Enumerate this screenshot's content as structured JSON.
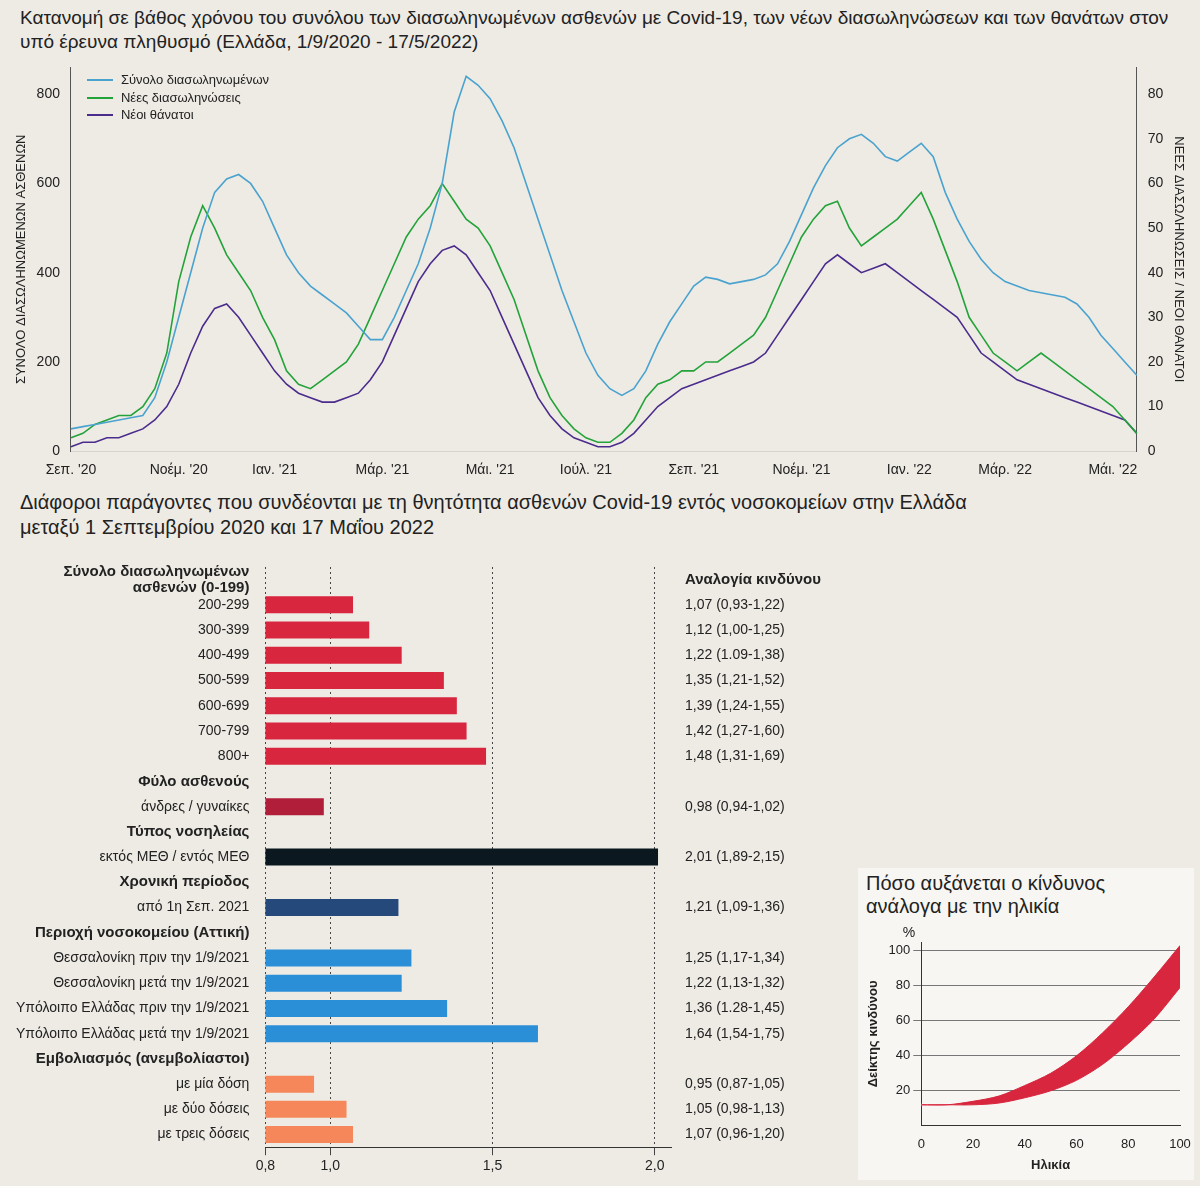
{
  "chart_data": [
    {
      "type": "line",
      "title": "Κατανομή σε βάθος χρόνου του συνόλου των διασωληνωμένων ασθενών με Covid-19, των νέων διασωληνώσεων και των θανάτων στον υπό έρευνα πληθυσμό (Ελλάδα, 1/9/2020 - 17/5/2022)",
      "ylabel": "ΣΥΝΟΛΟ ΔΙΑΣΩΛΗΝΩΜΕΝΩΝ ΑΣΘΕΝΩΝ",
      "y2label": "ΝΕΕΣ ΔΙΑΣΩΛΗΝΩΣΕΙΣ / ΝΕΟΙ ΘΑΝΑΤΟΙ",
      "categories": [
        "Σεπ. '20",
        null,
        null,
        null,
        null,
        null,
        null,
        null,
        null,
        "Νοέμ. '20",
        null,
        null,
        null,
        null,
        null,
        null,
        null,
        "Ιαν. '21",
        null,
        null,
        null,
        null,
        null,
        null,
        null,
        null,
        "Μάρ. '21",
        null,
        null,
        null,
        null,
        null,
        null,
        null,
        null,
        "Μάι. '21",
        null,
        null,
        null,
        null,
        null,
        null,
        null,
        "Ιούλ. '21",
        null,
        null,
        null,
        null,
        null,
        null,
        null,
        null,
        "Σεπ. '21",
        null,
        null,
        null,
        null,
        null,
        null,
        null,
        null,
        "Νοέμ. '21",
        null,
        null,
        null,
        null,
        null,
        null,
        null,
        null,
        "Ιαν. '22",
        null,
        null,
        null,
        null,
        null,
        null,
        null,
        "Μάρ. '22",
        null,
        null,
        null,
        null,
        null,
        null,
        null,
        null,
        "Μάι. '22",
        null,
        null
      ],
      "series": [
        {
          "name": "Σύνολο διασωληνωμένων",
          "color": "#4aa3cf",
          "axis": "y",
          "values": [
            50,
            55,
            60,
            65,
            70,
            75,
            80,
            120,
            200,
            300,
            400,
            500,
            580,
            610,
            620,
            600,
            560,
            500,
            440,
            400,
            370,
            350,
            330,
            310,
            280,
            250,
            250,
            300,
            360,
            420,
            500,
            600,
            760,
            840,
            820,
            790,
            740,
            680,
            600,
            520,
            440,
            360,
            290,
            220,
            170,
            140,
            125,
            140,
            180,
            240,
            290,
            330,
            370,
            390,
            385,
            375,
            380,
            385,
            395,
            420,
            470,
            530,
            590,
            640,
            680,
            700,
            710,
            690,
            660,
            650,
            670,
            690,
            660,
            580,
            520,
            470,
            430,
            400,
            380,
            370,
            360,
            355,
            350,
            345,
            330,
            300,
            260,
            230,
            200,
            170
          ]
        },
        {
          "name": "Νέες διασωληνώσεις",
          "color": "#23a33a",
          "axis": "y2",
          "values": [
            3,
            4,
            6,
            7,
            8,
            8,
            10,
            14,
            22,
            38,
            48,
            55,
            50,
            44,
            40,
            36,
            30,
            25,
            18,
            15,
            14,
            16,
            18,
            20,
            24,
            30,
            36,
            42,
            48,
            52,
            55,
            60,
            56,
            52,
            50,
            46,
            40,
            34,
            26,
            18,
            12,
            8,
            5,
            3,
            2,
            2,
            4,
            7,
            12,
            15,
            16,
            18,
            18,
            20,
            20,
            22,
            24,
            26,
            30,
            36,
            42,
            48,
            52,
            55,
            56,
            50,
            46,
            48,
            50,
            52,
            55,
            58,
            52,
            45,
            38,
            30,
            26,
            22,
            20,
            18,
            20,
            22,
            20,
            18,
            16,
            14,
            12,
            10,
            7,
            4
          ]
        },
        {
          "name": "Νέοι θάνατοι",
          "color": "#4b2c8c",
          "axis": "y2",
          "values": [
            1,
            2,
            2,
            3,
            3,
            4,
            5,
            7,
            10,
            15,
            22,
            28,
            32,
            33,
            30,
            26,
            22,
            18,
            15,
            13,
            12,
            11,
            11,
            12,
            13,
            16,
            20,
            26,
            32,
            38,
            42,
            45,
            46,
            44,
            40,
            36,
            30,
            24,
            18,
            12,
            8,
            5,
            3,
            2,
            1,
            1,
            2,
            4,
            7,
            10,
            12,
            14,
            15,
            16,
            17,
            18,
            19,
            20,
            22,
            26,
            30,
            34,
            38,
            42,
            44,
            42,
            40,
            41,
            42,
            40,
            38,
            36,
            34,
            32,
            30,
            26,
            22,
            20,
            18,
            16,
            15,
            14,
            13,
            12,
            11,
            10,
            9,
            8,
            7,
            4
          ]
        }
      ],
      "ylim": [
        0,
        860
      ],
      "yticks": [
        0,
        200,
        400,
        600,
        800
      ],
      "y2lim": [
        0,
        86
      ],
      "y2ticks": [
        0,
        10,
        20,
        30,
        40,
        50,
        60,
        70,
        80
      ],
      "grid": false,
      "legend": "upper left"
    },
    {
      "type": "bar",
      "orientation": "horizontal",
      "title": "Διάφοροι παράγοντες που συνδέονται με τη θνητότητα ασθενών Covid-19 εντός νοσοκομείων στην Ελλάδα μεταξύ 1 Σεπτεμβρίου 2020 και 17 Μαΐου 2022",
      "annotations": [
        {
          "text": "Αναλογία κινδύνου"
        }
      ],
      "groups": [
        {
          "name": "Σύνολο διασωληνωμένων ασθενών (0-199)",
          "color": "#d9263f",
          "categories": [
            "200-299",
            "300-399",
            "400-499",
            "500-599",
            "600-699",
            "700-799",
            "800+"
          ],
          "values": [
            1.07,
            1.12,
            1.22,
            1.35,
            1.39,
            1.42,
            1.48
          ],
          "value_labels": [
            "1,07 (0,93-1,22)",
            "1,12 (1,00-1,25)",
            "1,22 (1.09-1,38)",
            "1,35 (1,21-1,52)",
            "1,39 (1,24-1,55)",
            "1,42 (1,27-1,60)",
            "1,48 (1,31-1,69)"
          ]
        },
        {
          "name": "Φύλο ασθενούς",
          "color": "#b01e3a",
          "categories": [
            "άνδρες / γυναίκες"
          ],
          "values": [
            0.98
          ],
          "value_labels": [
            "0,98 (0,94-1,02)"
          ]
        },
        {
          "name": "Τύπος νοσηλείας",
          "color": "#0b1820",
          "categories": [
            "εκτός ΜΕΘ / εντός ΜΕΘ"
          ],
          "values": [
            2.01
          ],
          "value_labels": [
            "2,01 (1,89-2,15)"
          ]
        },
        {
          "name": "Χρονική περίοδος",
          "color": "#25497a",
          "categories": [
            "από 1η Σεπ. 2021"
          ],
          "values": [
            1.21
          ],
          "value_labels": [
            "1,21 (1,09-1,36)"
          ]
        },
        {
          "name": "Περιοχή νοσοκομείου (Αττική)",
          "color": "#2b8fd8",
          "categories": [
            "Θεσσαλονίκη πριν την 1/9/2021",
            "Θεσσαλονίκη μετά την 1/9/2021",
            "Υπόλοιπο Ελλάδας πριν την 1/9/2021",
            "Υπόλοιπο Ελλάδας μετά την 1/9/2021"
          ],
          "values": [
            1.25,
            1.22,
            1.36,
            1.64
          ],
          "value_labels": [
            "1,25 (1,17-1,34)",
            "1,22 (1,13-1,32)",
            "1,36 (1.28-1,45)",
            "1,64 (1,54-1,75)"
          ]
        },
        {
          "name": "Εμβολιασμός (ανεμβολίαστοι)",
          "color": "#f5875a",
          "categories": [
            "με μία δόση",
            "με δύο δόσεις",
            "με τρεις δόσεις"
          ],
          "values": [
            0.95,
            1.05,
            1.07
          ],
          "value_labels": [
            "0,95 (0,87-1,05)",
            "1,05 (0,98-1,13)",
            "1,07 (0,96-1,20)"
          ]
        }
      ],
      "xlim": [
        0.8,
        2.05
      ],
      "xticks": [
        {
          "value": 0.8,
          "label": "0,8"
        },
        {
          "value": 1,
          "label": "1,0"
        },
        {
          "value": 1.5,
          "label": "1,5"
        },
        {
          "value": 2,
          "label": "2,0"
        }
      ],
      "grid": true,
      "data_labels": true
    },
    {
      "type": "line",
      "title": "Πόσο αυξάνεται ο κίνδυνος ανάλογα με την ηλικία",
      "xlabel": "Ηλικία",
      "ylabel": "Δείκτης κινδύνου",
      "annotations": [
        {
          "text": "%"
        }
      ],
      "x": [
        0,
        10,
        20,
        30,
        40,
        50,
        60,
        70,
        80,
        90,
        100
      ],
      "series": [
        {
          "color": "#ffffff",
          "values": [
            12,
            12,
            13,
            15,
            19,
            25,
            33,
            44,
            58,
            73,
            91
          ]
        }
      ],
      "band": {
        "color": "#d7263d",
        "lower": [
          12,
          12,
          12,
          13,
          16,
          20,
          26,
          35,
          47,
          61,
          79
        ],
        "upper": [
          12,
          12,
          14,
          17,
          23,
          30,
          40,
          53,
          68,
          85,
          103
        ]
      },
      "xlim": [
        0,
        100
      ],
      "xticks": [
        0,
        20,
        40,
        60,
        80,
        100
      ],
      "ylim": [
        0,
        105
      ],
      "yticks": [
        20,
        40,
        60,
        80,
        100
      ],
      "grid": true
    }
  ]
}
